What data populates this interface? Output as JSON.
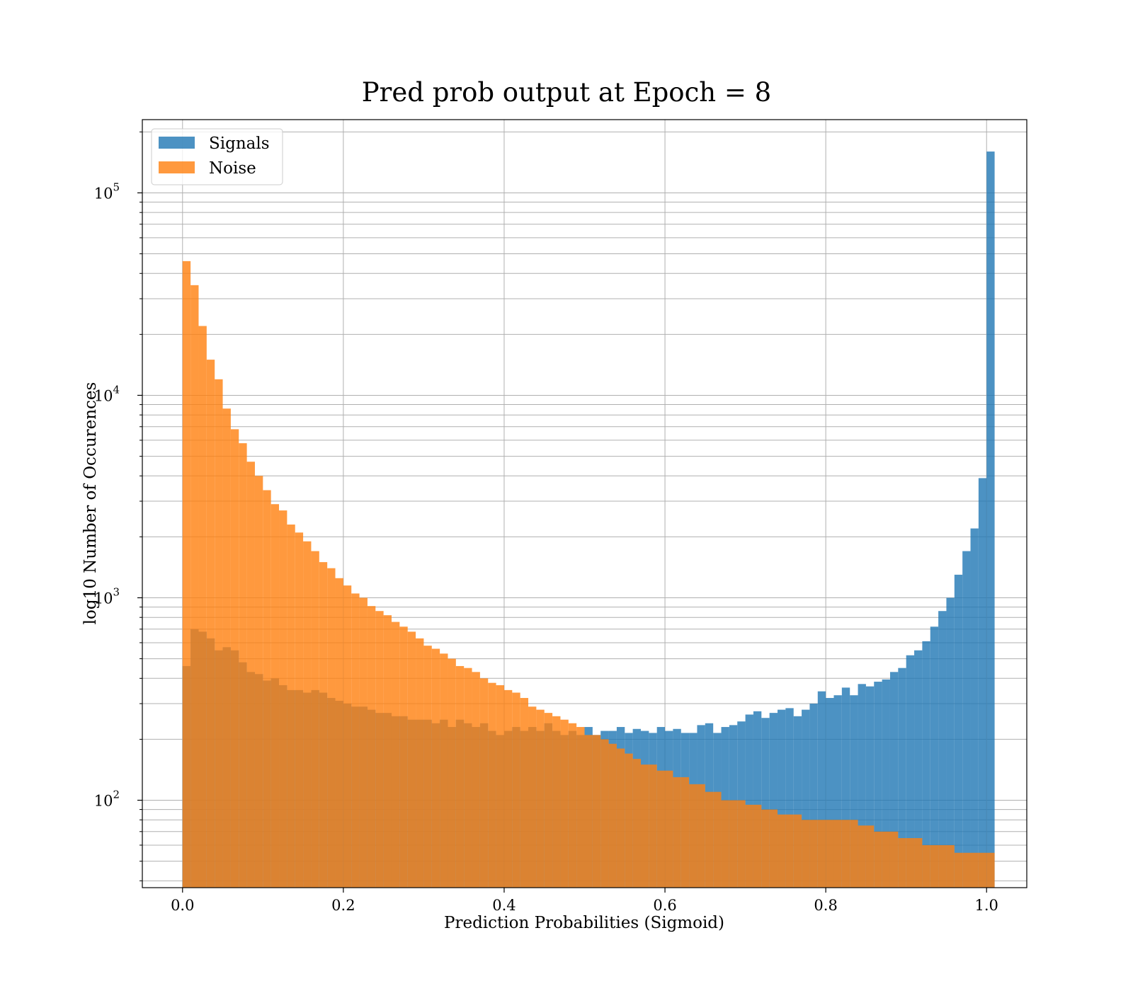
{
  "chart_data": {
    "type": "bar",
    "title": "Pred prob output at Epoch = 8",
    "xlabel": "Prediction Probabilities (Sigmoid)",
    "ylabel": "log10 Number of Occurences",
    "yscale": "log",
    "xlim": [
      -0.05,
      1.05
    ],
    "ylim": [
      37,
      230000
    ],
    "xticks": [
      "0.0",
      "0.2",
      "0.4",
      "0.6",
      "0.8",
      "1.0"
    ],
    "xtick_values": [
      0,
      0.2,
      0.4,
      0.6,
      0.8,
      1.0
    ],
    "yticks": [
      {
        "base": "10",
        "exp": "2",
        "value": 100
      },
      {
        "base": "10",
        "exp": "3",
        "value": 1000
      },
      {
        "base": "10",
        "exp": "4",
        "value": 10000
      },
      {
        "base": "10",
        "exp": "5",
        "value": 100000
      }
    ],
    "grid": true,
    "legend_position": "top-left",
    "bin_width": 0.01,
    "bins_start": 0.0,
    "series": [
      {
        "name": "Signals",
        "color": "#1f77b4",
        "alpha": 0.8,
        "values": [
          460,
          700,
          680,
          630,
          550,
          570,
          550,
          480,
          430,
          420,
          390,
          400,
          370,
          350,
          350,
          340,
          350,
          340,
          320,
          310,
          300,
          290,
          290,
          280,
          270,
          270,
          260,
          260,
          250,
          250,
          250,
          240,
          250,
          230,
          250,
          240,
          230,
          240,
          220,
          210,
          220,
          230,
          220,
          230,
          220,
          240,
          220,
          210,
          220,
          210,
          230,
          210,
          220,
          220,
          230,
          215,
          225,
          220,
          215,
          230,
          220,
          225,
          215,
          215,
          235,
          240,
          215,
          230,
          235,
          245,
          265,
          275,
          255,
          270,
          280,
          285,
          260,
          280,
          300,
          345,
          320,
          330,
          360,
          330,
          375,
          365,
          385,
          395,
          430,
          450,
          520,
          550,
          610,
          720,
          860,
          1000,
          1300,
          1700,
          2200,
          3900,
          160000
        ]
      },
      {
        "name": "Noise",
        "color": "#ff7f0e",
        "alpha": 0.8,
        "values": [
          46000,
          35000,
          22000,
          15000,
          12000,
          8600,
          6800,
          5800,
          4700,
          4000,
          3400,
          2900,
          2700,
          2300,
          2100,
          1900,
          1700,
          1500,
          1400,
          1250,
          1150,
          1050,
          1000,
          910,
          860,
          820,
          760,
          720,
          680,
          630,
          580,
          560,
          530,
          500,
          460,
          450,
          430,
          400,
          380,
          370,
          350,
          340,
          320,
          290,
          280,
          270,
          260,
          250,
          240,
          230,
          210,
          210,
          200,
          190,
          180,
          170,
          160,
          150,
          150,
          140,
          140,
          130,
          130,
          120,
          120,
          110,
          110,
          100,
          100,
          100,
          95,
          95,
          90,
          90,
          85,
          85,
          85,
          80,
          80,
          80,
          80,
          80,
          80,
          80,
          75,
          75,
          70,
          70,
          70,
          65,
          65,
          65,
          60,
          60,
          60,
          60,
          55,
          55,
          55,
          55,
          55
        ]
      }
    ]
  }
}
